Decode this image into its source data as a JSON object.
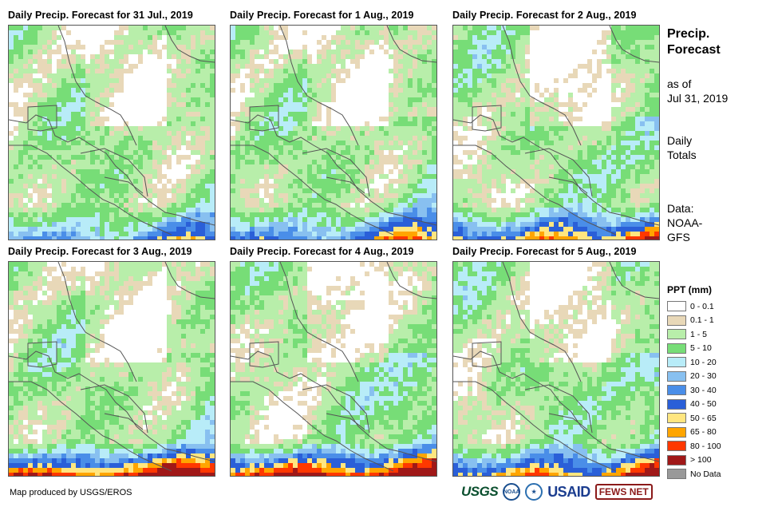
{
  "panels": [
    {
      "title": "Daily Precip. Forecast for 31 Jul., 2019",
      "seed": 11,
      "south": 1.2,
      "east": 0.6
    },
    {
      "title": "Daily Precip. Forecast for 1 Aug., 2019",
      "seed": 23,
      "south": 1.5,
      "east": 1.0
    },
    {
      "title": "Daily Precip. Forecast for 2 Aug., 2019",
      "seed": 37,
      "south": 2.0,
      "east": 1.1
    },
    {
      "title": "Daily Precip. Forecast for 3 Aug., 2019",
      "seed": 41,
      "south": 2.6,
      "east": 0.9
    },
    {
      "title": "Daily Precip. Forecast for 4 Aug., 2019",
      "seed": 53,
      "south": 2.7,
      "east": 1.2
    },
    {
      "title": "Daily Precip. Forecast for 5 Aug., 2019",
      "seed": 67,
      "south": 2.1,
      "east": 1.6
    }
  ],
  "side": {
    "title": [
      "Precip.",
      "Forecast"
    ],
    "as_of": [
      "as of",
      "Jul 31, 2019"
    ],
    "totals": [
      "Daily",
      "Totals"
    ],
    "data": [
      "Data:",
      "NOAA-",
      "GFS"
    ]
  },
  "legend": {
    "title": "PPT (mm)",
    "items": [
      {
        "label": "0 - 0.1",
        "color": "#ffffff"
      },
      {
        "label": "0.1 - 1",
        "color": "#e8d8b8"
      },
      {
        "label": "1 - 5",
        "color": "#b8eeaa"
      },
      {
        "label": "5 - 10",
        "color": "#77dd77"
      },
      {
        "label": "10 - 20",
        "color": "#b8ecf8"
      },
      {
        "label": "20 - 30",
        "color": "#88c0f0"
      },
      {
        "label": "30 - 40",
        "color": "#4a8ee8"
      },
      {
        "label": "40 - 50",
        "color": "#2a5fd8"
      },
      {
        "label": "50 - 65",
        "color": "#ffe680"
      },
      {
        "label": "65 - 80",
        "color": "#ffa500"
      },
      {
        "label": "80 - 100",
        "color": "#ff3800"
      },
      {
        "label": "> 100",
        "color": "#a01818"
      },
      {
        "label": "No Data",
        "color": "#999999"
      }
    ]
  },
  "credit": "Map produced by USGS/EROS",
  "logos": {
    "usgs": "USGS",
    "noaa": "NOAA",
    "usaid": "USAID",
    "fews": "FEWS NET"
  }
}
